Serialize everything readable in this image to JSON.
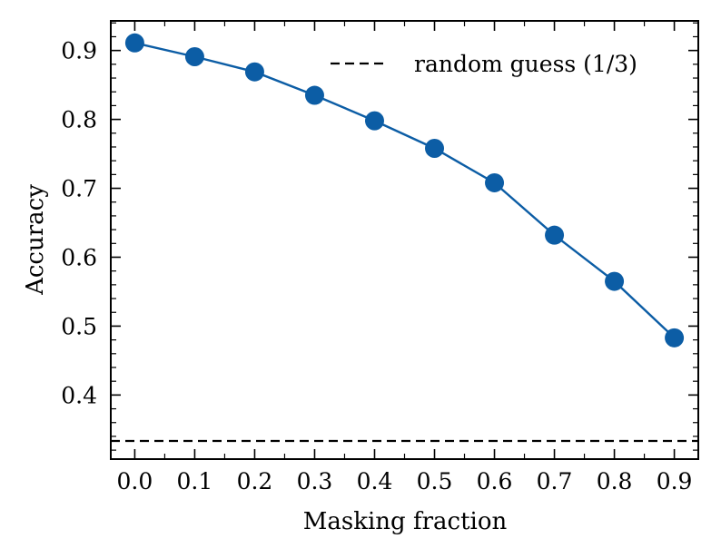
{
  "chart_data": {
    "type": "line",
    "title": "",
    "xlabel": "Masking fraction",
    "ylabel": "Accuracy",
    "x": [
      0.0,
      0.1,
      0.2,
      0.3,
      0.4,
      0.5,
      0.6,
      0.7,
      0.8,
      0.9
    ],
    "x_tick_labels": [
      "0.0",
      "0.1",
      "0.2",
      "0.3",
      "0.4",
      "0.5",
      "0.6",
      "0.7",
      "0.8",
      "0.9"
    ],
    "y_ticks": [
      0.4,
      0.5,
      0.6,
      0.7,
      0.8,
      0.9
    ],
    "y_tick_labels": [
      "0.4",
      "0.5",
      "0.6",
      "0.7",
      "0.8",
      "0.9"
    ],
    "xlim": [
      -0.04,
      0.94
    ],
    "ylim": [
      0.307,
      0.943
    ],
    "series": [
      {
        "name": "Accuracy",
        "values": [
          0.911,
          0.891,
          0.869,
          0.835,
          0.798,
          0.758,
          0.708,
          0.632,
          0.565,
          0.483
        ],
        "color": "#0c5da5",
        "marker": "circle"
      }
    ],
    "reference_lines": [
      {
        "name": "random guess (1/3)",
        "y": 0.3333,
        "style": "dashed",
        "color": "#000000"
      }
    ],
    "legend": {
      "position": "top-right",
      "entries": [
        "random guess (1/3)"
      ]
    },
    "grid": false
  }
}
